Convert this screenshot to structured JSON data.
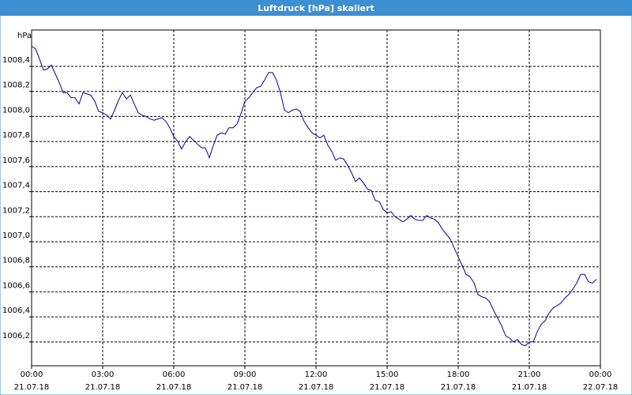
{
  "chart_data": {
    "type": "line",
    "title": "Luftdruck [hPa] skaliert",
    "ylabel": "hPa",
    "x": [
      0,
      0.17,
      0.33,
      0.5,
      0.67,
      0.83,
      1,
      1.17,
      1.33,
      1.5,
      1.67,
      1.83,
      2,
      2.17,
      2.33,
      2.5,
      2.67,
      2.83,
      3,
      3.17,
      3.33,
      3.5,
      3.67,
      3.83,
      4,
      4.17,
      4.33,
      4.5,
      4.67,
      4.83,
      5,
      5.17,
      5.33,
      5.5,
      5.67,
      5.83,
      6,
      6.17,
      6.33,
      6.5,
      6.67,
      6.83,
      7,
      7.17,
      7.33,
      7.5,
      7.67,
      7.83,
      8,
      8.17,
      8.33,
      8.5,
      8.67,
      8.83,
      9,
      9.17,
      9.33,
      9.5,
      9.67,
      9.83,
      10,
      10.17,
      10.33,
      10.5,
      10.67,
      10.83,
      11,
      11.17,
      11.33,
      11.5,
      11.67,
      11.83,
      12,
      12.17,
      12.33,
      12.5,
      12.67,
      12.83,
      13,
      13.17,
      13.33,
      13.5,
      13.67,
      13.83,
      14,
      14.17,
      14.33,
      14.5,
      14.67,
      14.83,
      15,
      15.17,
      15.33,
      15.5,
      15.67,
      15.83,
      16,
      16.17,
      16.33,
      16.5,
      16.67,
      16.83,
      17,
      17.17,
      17.33,
      17.5,
      17.67,
      17.83,
      18,
      18.17,
      18.33,
      18.5,
      18.67,
      18.83,
      19,
      19.17,
      19.33,
      19.5,
      19.67,
      19.83,
      20,
      20.17,
      20.33,
      20.5,
      20.67,
      20.83,
      21,
      21.17,
      21.33,
      21.5,
      21.67,
      21.83,
      22,
      22.17,
      22.33,
      22.5,
      22.67,
      22.83,
      23,
      23.17,
      23.33,
      23.5,
      23.67,
      23.83
    ],
    "series": [
      {
        "color": "#000099",
        "values": [
          1008.56,
          1008.54,
          1008.46,
          1008.37,
          1008.38,
          1008.41,
          1008.34,
          1008.27,
          1008.19,
          1008.19,
          1008.15,
          1008.15,
          1008.1,
          1008.19,
          1008.18,
          1008.17,
          1008.12,
          1008.04,
          1008.03,
          1008.01,
          1007.98,
          1008.05,
          1008.13,
          1008.19,
          1008.14,
          1008.17,
          1008.1,
          1008.03,
          1008.01,
          1008.0,
          1007.98,
          1007.97,
          1007.98,
          1007.99,
          1007.96,
          1007.91,
          1007.84,
          1007.8,
          1007.74,
          1007.8,
          1007.84,
          1007.81,
          1007.78,
          1007.75,
          1007.75,
          1007.67,
          1007.77,
          1007.85,
          1007.87,
          1007.86,
          1007.91,
          1007.91,
          1007.94,
          1008.02,
          1008.12,
          1008.15,
          1008.19,
          1008.23,
          1008.24,
          1008.29,
          1008.35,
          1008.35,
          1008.29,
          1008.19,
          1008.05,
          1008.03,
          1008.05,
          1008.06,
          1008.04,
          1007.96,
          1007.91,
          1007.87,
          1007.85,
          1007.83,
          1007.85,
          1007.77,
          1007.72,
          1007.65,
          1007.67,
          1007.66,
          1007.61,
          1007.55,
          1007.48,
          1007.51,
          1007.47,
          1007.42,
          1007.41,
          1007.33,
          1007.32,
          1007.26,
          1007.23,
          1007.24,
          1007.2,
          1007.18,
          1007.16,
          1007.18,
          1007.21,
          1007.18,
          1007.17,
          1007.17,
          1007.21,
          1007.19,
          1007.18,
          1007.15,
          1007.1,
          1007.06,
          1007.02,
          1006.95,
          1006.88,
          1006.81,
          1006.74,
          1006.72,
          1006.67,
          1006.58,
          1006.56,
          1006.55,
          1006.52,
          1006.45,
          1006.39,
          1006.33,
          1006.25,
          1006.23,
          1006.2,
          1006.22,
          1006.18,
          1006.17,
          1006.2,
          1006.2,
          1006.28,
          1006.34,
          1006.37,
          1006.43,
          1006.47,
          1006.49,
          1006.51,
          1006.55,
          1006.58,
          1006.62,
          1006.67,
          1006.74,
          1006.74,
          1006.68,
          1006.67,
          1006.7
        ]
      }
    ],
    "xlim": [
      0,
      24
    ],
    "xticks": [
      {
        "value": 0,
        "label": "00:00 21.07.18"
      },
      {
        "value": 3,
        "label": "03:00 21.07.18"
      },
      {
        "value": 6,
        "label": "06:00 21.07.18"
      },
      {
        "value": 9,
        "label": "09:00 21.07.18"
      },
      {
        "value": 12,
        "label": "12:00 21.07.18"
      },
      {
        "value": 15,
        "label": "15:00 21.07.18"
      },
      {
        "value": 18,
        "label": "18:00 21.07.18"
      },
      {
        "value": 21,
        "label": "21:00 21.07.18"
      },
      {
        "value": 24,
        "label": "00:00 22.07.18"
      }
    ],
    "ylim": [
      1006.01,
      1008.69
    ],
    "yticks": [
      {
        "value": 1006.2,
        "label": "1006,2"
      },
      {
        "value": 1006.4,
        "label": "1006,4"
      },
      {
        "value": 1006.6,
        "label": "1006,6"
      },
      {
        "value": 1006.8,
        "label": "1006,8"
      },
      {
        "value": 1007.0,
        "label": "1007,0"
      },
      {
        "value": 1007.2,
        "label": "1007,2"
      },
      {
        "value": 1007.4,
        "label": "1007,4"
      },
      {
        "value": 1007.6,
        "label": "1007,6"
      },
      {
        "value": 1007.8,
        "label": "1007,8"
      },
      {
        "value": 1008.0,
        "label": "1008,0"
      },
      {
        "value": 1008.2,
        "label": "1008,2"
      },
      {
        "value": 1008.4,
        "label": "1008,4"
      }
    ],
    "grid": true
  }
}
